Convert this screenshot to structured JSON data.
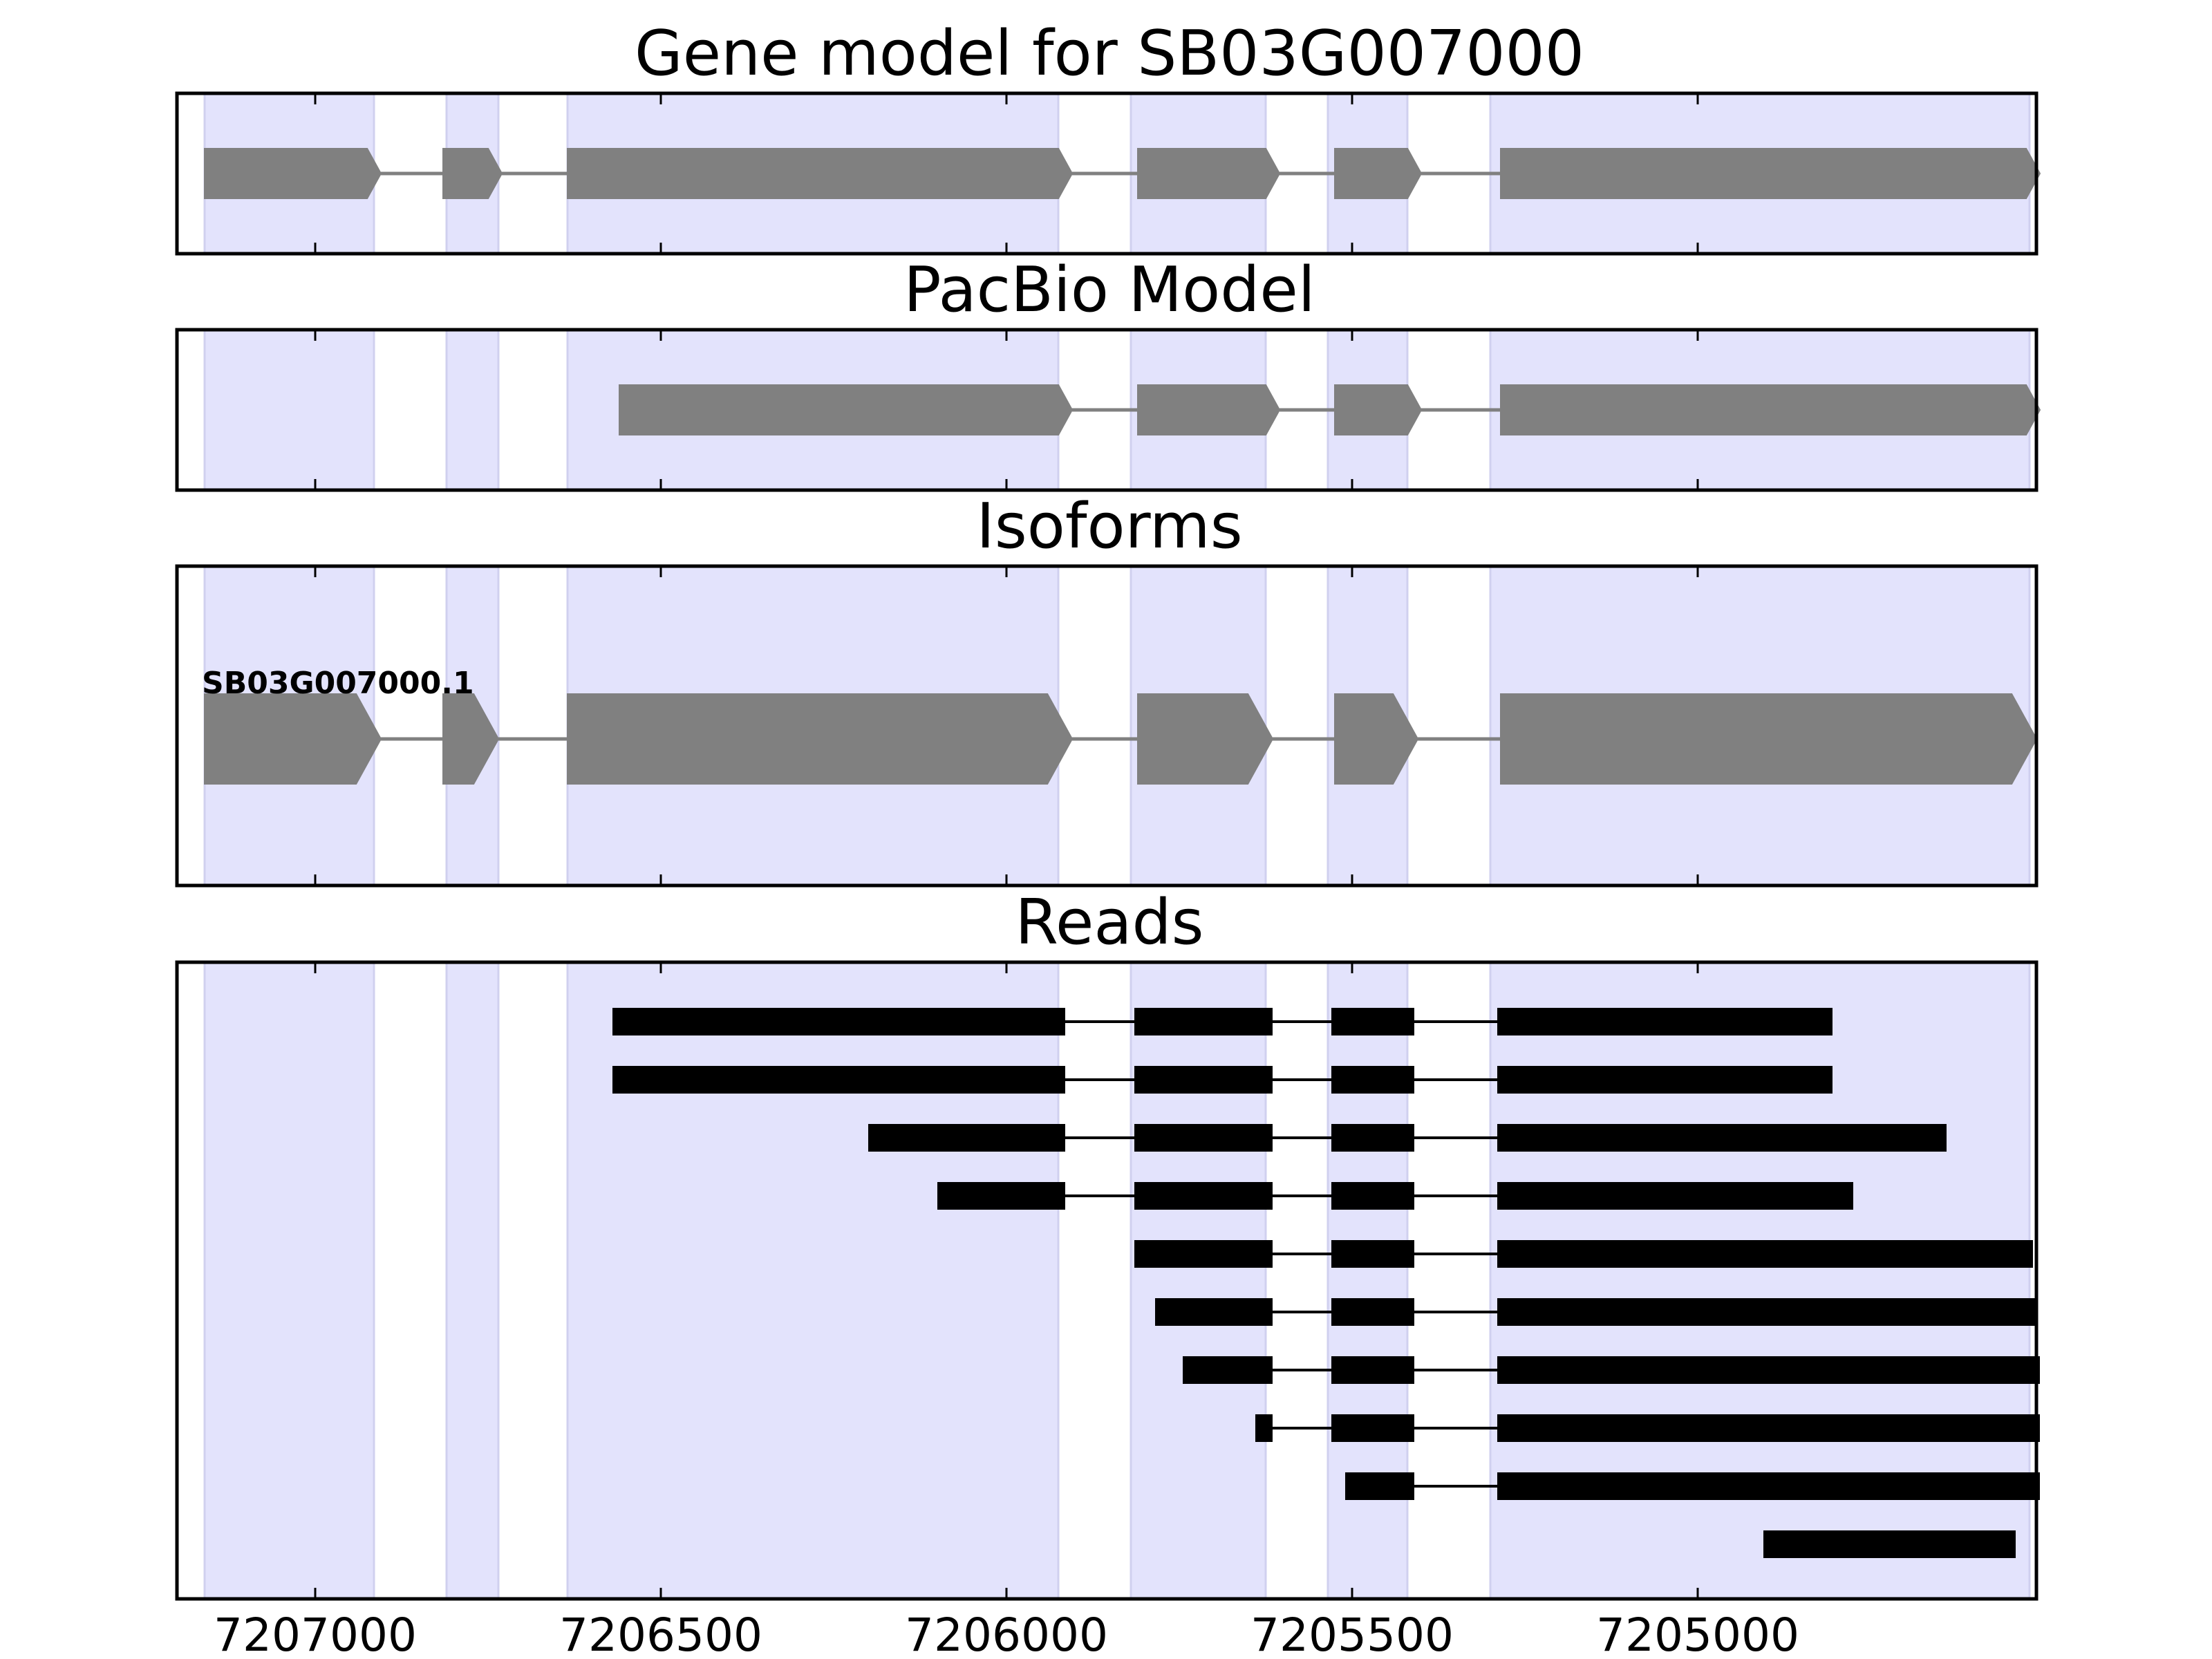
{
  "chart_data": [
    {
      "type": "gene-model",
      "title": "Gene model for SB03G007000",
      "features": [
        {
          "start": 7207160,
          "end": 7206905,
          "kind": "exon"
        },
        {
          "start": 7206815,
          "end": 7206730,
          "kind": "exon"
        },
        {
          "start": 7206635,
          "end": 7205905,
          "kind": "exon"
        },
        {
          "start": 7205810,
          "end": 7205605,
          "kind": "exon"
        },
        {
          "start": 7205525,
          "end": 7205400,
          "kind": "exon"
        },
        {
          "start": 7205285,
          "end": 7204505,
          "kind": "exon"
        }
      ]
    },
    {
      "type": "gene-model",
      "title": "PacBio Model",
      "features": [
        {
          "start": 7206560,
          "end": 7205905,
          "kind": "exon"
        },
        {
          "start": 7205810,
          "end": 7205605,
          "kind": "exon"
        },
        {
          "start": 7205525,
          "end": 7205400,
          "kind": "exon"
        },
        {
          "start": 7205285,
          "end": 7204505,
          "kind": "exon"
        }
      ]
    },
    {
      "type": "gene-model",
      "title": "Isoforms",
      "isoform_label": "SB03G007000.1",
      "features": [
        {
          "start": 7207160,
          "end": 7206905,
          "kind": "exon"
        },
        {
          "start": 7206815,
          "end": 7206735,
          "kind": "exon"
        },
        {
          "start": 7206635,
          "end": 7205905,
          "kind": "exon"
        },
        {
          "start": 7205810,
          "end": 7205615,
          "kind": "exon"
        },
        {
          "start": 7205525,
          "end": 7205405,
          "kind": "exon"
        },
        {
          "start": 7205285,
          "end": 7204510,
          "kind": "exon"
        }
      ]
    },
    {
      "type": "reads",
      "title": "Reads",
      "reads": [
        [
          [
            7206570,
            7205915
          ],
          [
            7205815,
            7205615
          ],
          [
            7205530,
            7205410
          ],
          [
            7205290,
            7204805
          ]
        ],
        [
          [
            7206570,
            7205915
          ],
          [
            7205815,
            7205615
          ],
          [
            7205530,
            7205410
          ],
          [
            7205290,
            7204805
          ]
        ],
        [
          [
            7206200,
            7205915
          ],
          [
            7205815,
            7205615
          ],
          [
            7205530,
            7205410
          ],
          [
            7205290,
            7204640
          ]
        ],
        [
          [
            7206100,
            7205915
          ],
          [
            7205815,
            7205615
          ],
          [
            7205530,
            7205410
          ],
          [
            7205290,
            7204775
          ]
        ],
        [
          [
            7205815,
            7205615
          ],
          [
            7205530,
            7205410
          ],
          [
            7205290,
            7204515
          ]
        ],
        [
          [
            7205785,
            7205615
          ],
          [
            7205530,
            7205410
          ],
          [
            7205290,
            7204510
          ]
        ],
        [
          [
            7205745,
            7205615
          ],
          [
            7205530,
            7205410
          ],
          [
            7205290,
            7204505
          ]
        ],
        [
          [
            7205640,
            7205615
          ],
          [
            7205530,
            7205410
          ],
          [
            7205290,
            7204505
          ]
        ],
        [
          [
            7205510,
            7205410
          ],
          [
            7205290,
            7204505
          ]
        ],
        [
          [
            7204905,
            7204540
          ]
        ]
      ]
    }
  ],
  "shared_axis": {
    "xlim": [
      7207200,
      7204510
    ],
    "inverted": true,
    "ticks": [
      7207000,
      7206500,
      7206000,
      7205500,
      7205000
    ],
    "tick_labels": [
      "7207000",
      "7206500",
      "7206000",
      "7205500",
      "7205000"
    ],
    "exon_highlights": [
      [
        7207160,
        7206915
      ],
      [
        7206810,
        7206735
      ],
      [
        7206635,
        7205925
      ],
      [
        7205820,
        7205625
      ],
      [
        7205535,
        7205420
      ],
      [
        7205300,
        7204520
      ]
    ]
  },
  "colors": {
    "highlight": "#e3e3fc",
    "highlight_edge": "#d0d0ef",
    "model_fill": "#808080",
    "read_fill": "#000000",
    "axes": "#000000"
  }
}
